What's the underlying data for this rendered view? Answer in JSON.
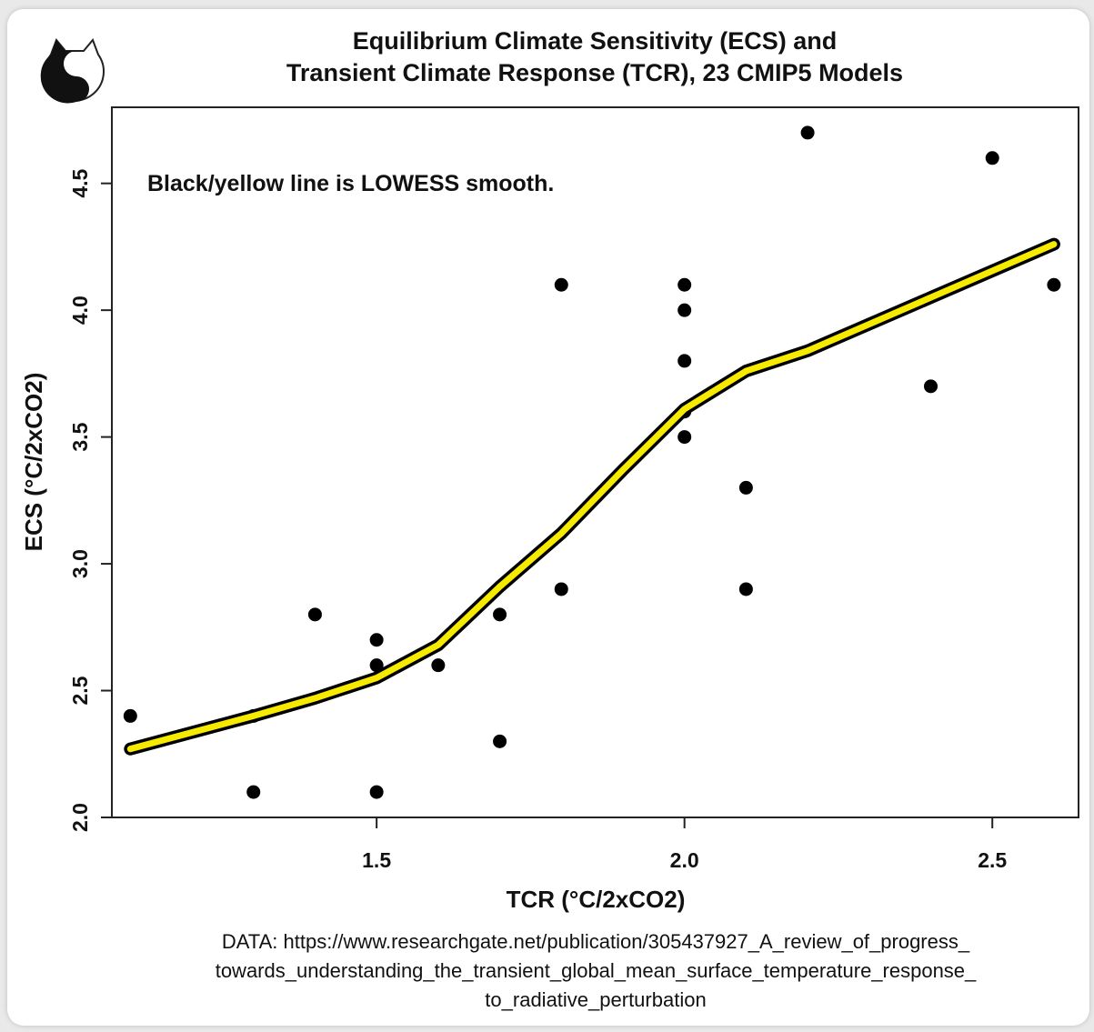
{
  "chart_data": {
    "type": "scatter",
    "title": "Equilibrium Climate Sensitivity (ECS) and",
    "subtitle": "Transient Climate Response (TCR), 23 CMIP5 Models",
    "xlabel": "TCR (°C/2xCO2)",
    "ylabel": "ECS (°C/2xCO2)",
    "xlim": [
      1.07,
      2.64
    ],
    "ylim": [
      2.0,
      4.8
    ],
    "x_ticks": [
      "1.5",
      "2.0",
      "2.5"
    ],
    "y_ticks": [
      "2.0",
      "2.5",
      "3.0",
      "3.5",
      "4.0",
      "4.5"
    ],
    "annotation": "Black/yellow line is LOWESS smooth.",
    "points": [
      {
        "x": 1.1,
        "y": 2.4
      },
      {
        "x": 1.3,
        "y": 2.4
      },
      {
        "x": 1.3,
        "y": 2.1
      },
      {
        "x": 1.4,
        "y": 2.8
      },
      {
        "x": 1.5,
        "y": 2.7
      },
      {
        "x": 1.5,
        "y": 2.6
      },
      {
        "x": 1.5,
        "y": 2.1
      },
      {
        "x": 1.6,
        "y": 2.6
      },
      {
        "x": 1.7,
        "y": 2.8
      },
      {
        "x": 1.7,
        "y": 2.3
      },
      {
        "x": 1.8,
        "y": 4.1
      },
      {
        "x": 1.8,
        "y": 2.9
      },
      {
        "x": 2.0,
        "y": 4.1
      },
      {
        "x": 2.0,
        "y": 4.0
      },
      {
        "x": 2.0,
        "y": 3.8
      },
      {
        "x": 2.0,
        "y": 3.6
      },
      {
        "x": 2.0,
        "y": 3.5
      },
      {
        "x": 2.1,
        "y": 3.3
      },
      {
        "x": 2.1,
        "y": 2.9
      },
      {
        "x": 2.2,
        "y": 4.7
      },
      {
        "x": 2.4,
        "y": 3.7
      },
      {
        "x": 2.5,
        "y": 4.6
      },
      {
        "x": 2.6,
        "y": 4.1
      }
    ],
    "smooth": {
      "method": "LOWESS",
      "x": [
        1.1,
        1.3,
        1.4,
        1.5,
        1.6,
        1.7,
        1.8,
        1.9,
        2.0,
        2.1,
        2.2,
        2.4,
        2.6
      ],
      "y": [
        2.27,
        2.4,
        2.47,
        2.55,
        2.68,
        2.91,
        3.12,
        3.37,
        3.61,
        3.76,
        3.84,
        4.05,
        4.26
      ]
    },
    "colors": {
      "points": "#000000",
      "smooth_outer": "#000000",
      "smooth_inner": "#f5ea00"
    },
    "grid": false,
    "source_lines": [
      "DATA: https://www.researchgate.net/publication/305437927_A_review_of_progress_",
      "towards_understanding_the_transient_global_mean_surface_temperature_response_",
      "to_radiative_perturbation"
    ]
  },
  "logo": {
    "icon": "yin-yang-cat-logo-icon"
  }
}
